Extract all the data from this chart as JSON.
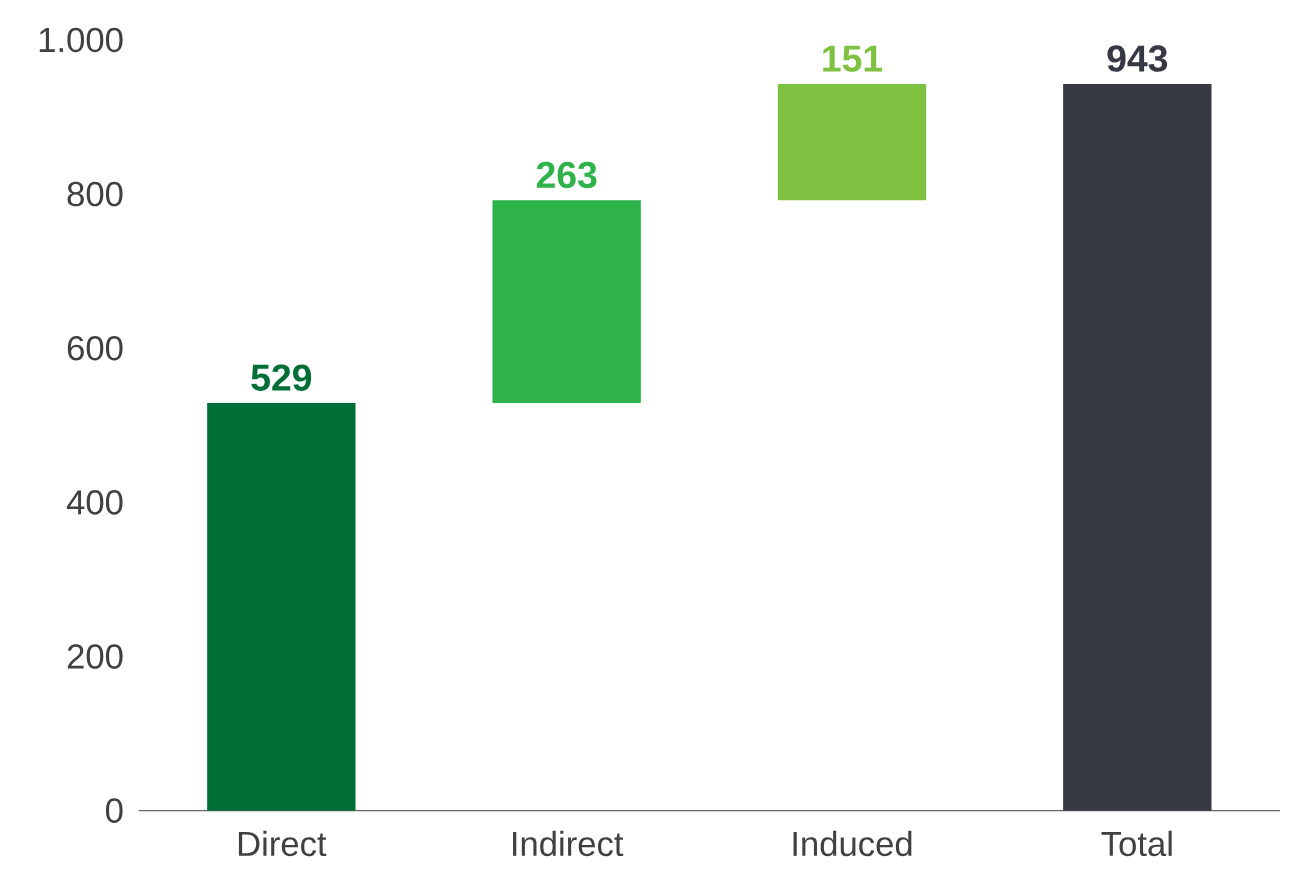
{
  "chart_data": {
    "type": "bar",
    "categories": [
      "Direct",
      "Indirect",
      "Induced",
      "Total"
    ],
    "values": [
      529,
      263,
      151,
      943
    ],
    "base": [
      0,
      529,
      792,
      0
    ],
    "colors": [
      "#006e37",
      "#2db34a",
      "#7fc241",
      "#363944"
    ],
    "ylim": [
      0,
      1000
    ],
    "yticks": [
      0,
      200,
      400,
      600,
      800,
      {
        "value": 1000,
        "label": "1.000"
      }
    ],
    "data_labels": true,
    "grid": false
  }
}
